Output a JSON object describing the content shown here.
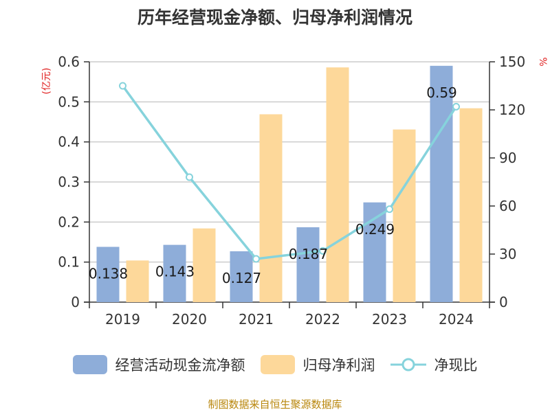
{
  "chart_data": {
    "type": "bar",
    "title": "历年经营现金净额、归母净利润情况",
    "categories": [
      "2019",
      "2020",
      "2021",
      "2022",
      "2023",
      "2024"
    ],
    "series": [
      {
        "name": "经营活动现金流净额",
        "type": "bar",
        "axis": "left",
        "color": "#8eadd9",
        "values": [
          0.138,
          0.143,
          0.127,
          0.187,
          0.249,
          0.59
        ],
        "labels": [
          "0.138",
          "0.143",
          "0.127",
          "0.187",
          "0.249",
          "0.59"
        ]
      },
      {
        "name": "归母净利润",
        "type": "bar",
        "axis": "left",
        "color": "#fdd89a",
        "values": [
          0.104,
          0.184,
          0.469,
          0.586,
          0.431,
          0.484
        ]
      },
      {
        "name": "净现比",
        "type": "line",
        "axis": "right",
        "color": "#86d3dc",
        "values": [
          135,
          78,
          27,
          32,
          58,
          122
        ]
      }
    ],
    "y_left": {
      "label": "(亿元)",
      "min": 0,
      "max": 0.6,
      "ticks": [
        "0",
        "0.1",
        "0.2",
        "0.3",
        "0.4",
        "0.5",
        "0.6"
      ]
    },
    "y_right": {
      "label": "%",
      "min": 0,
      "max": 150,
      "ticks": [
        "0",
        "30",
        "60",
        "90",
        "120",
        "150"
      ]
    },
    "grid": true,
    "legend_position": "bottom"
  },
  "source": "制图数据来自恒生聚源数据库"
}
